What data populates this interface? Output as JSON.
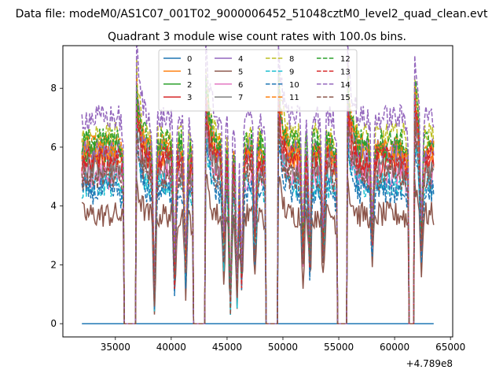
{
  "chart_data": {
    "type": "line",
    "suptitle": "Data file: modeM0/AS1C07_001T02_9000006452_51048cztM0_level2_quad_clean.evt",
    "title": "Quadrant 3 module wise count rates with 100.0s bins.",
    "xlabel": "",
    "ylabel": "",
    "x_offset_label": "+4.789e8",
    "xlim": [
      30300,
      65200
    ],
    "ylim": [
      -0.45,
      9.45
    ],
    "x_ticks": [
      35000,
      40000,
      45000,
      50000,
      55000,
      60000,
      65000
    ],
    "y_ticks": [
      0,
      2,
      4,
      6,
      8
    ],
    "x_range": [
      32000,
      63500
    ],
    "bin_width": 100,
    "gaps": [
      [
        35800,
        36900
      ],
      [
        42000,
        43100
      ],
      [
        48500,
        49600
      ],
      [
        54900,
        55800
      ],
      [
        61300,
        61800
      ]
    ],
    "dips": [
      [
        38500,
        1.0
      ],
      [
        40300,
        1.6
      ],
      [
        41300,
        1.8
      ],
      [
        44700,
        2.5
      ],
      [
        45300,
        0.7
      ],
      [
        45900,
        1.1
      ],
      [
        46300,
        1.6
      ],
      [
        47500,
        2.6
      ],
      [
        51800,
        2.4
      ],
      [
        52400,
        2.2
      ],
      [
        53600,
        2.6
      ],
      [
        58000,
        2.8
      ],
      [
        62400,
        2.7
      ]
    ],
    "legend": {
      "location": "upper center",
      "columns": 4
    },
    "series": [
      {
        "name": "0",
        "color": "#1f77b4",
        "dash": "solid",
        "level": 0.0
      },
      {
        "name": "1",
        "color": "#ff7f0e",
        "dash": "solid",
        "level": 5.7
      },
      {
        "name": "2",
        "color": "#2ca02c",
        "dash": "solid",
        "level": 5.9
      },
      {
        "name": "3",
        "color": "#d62728",
        "dash": "solid",
        "level": 5.4
      },
      {
        "name": "4",
        "color": "#9467bd",
        "dash": "solid",
        "level": 5.9
      },
      {
        "name": "5",
        "color": "#8c564b",
        "dash": "solid",
        "level": 3.7
      },
      {
        "name": "6",
        "color": "#e377c2",
        "dash": "solid",
        "level": 5.0
      },
      {
        "name": "7",
        "color": "#7f7f7f",
        "dash": "solid",
        "level": 5.3
      },
      {
        "name": "8",
        "color": "#bcbd22",
        "dash": "dashed",
        "level": 6.4
      },
      {
        "name": "9",
        "color": "#17becf",
        "dash": "dashed",
        "level": 4.7
      },
      {
        "name": "10",
        "color": "#1f77b4",
        "dash": "dashed",
        "level": 4.5
      },
      {
        "name": "11",
        "color": "#ff7f0e",
        "dash": "dashed",
        "level": 6.0
      },
      {
        "name": "12",
        "color": "#2ca02c",
        "dash": "dashed",
        "level": 6.2
      },
      {
        "name": "13",
        "color": "#d62728",
        "dash": "dashed",
        "level": 5.6
      },
      {
        "name": "14",
        "color": "#9467bd",
        "dash": "dashed",
        "level": 7.0
      },
      {
        "name": "15",
        "color": "#8c564b",
        "dash": "dashed",
        "level": 5.0
      }
    ]
  }
}
